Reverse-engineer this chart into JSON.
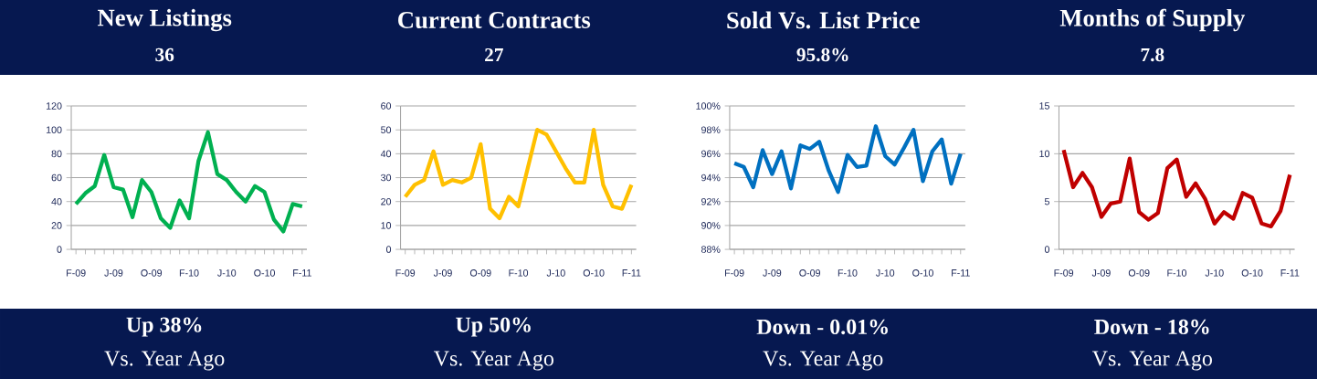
{
  "chart_data": [
    {
      "type": "line",
      "title": "New Listings",
      "subtitle": "36",
      "color": "#00b050",
      "grid": "y",
      "categories": [
        "F-09",
        null,
        null,
        null,
        "J-09",
        null,
        null,
        null,
        "O-09",
        null,
        null,
        null,
        "F-10",
        null,
        null,
        null,
        "J-10",
        null,
        null,
        null,
        "O-10",
        null,
        null,
        null,
        "F-11"
      ],
      "values": [
        38,
        47,
        53,
        79,
        52,
        50,
        27,
        58,
        48,
        26,
        18,
        41,
        26,
        74,
        98,
        63,
        58,
        48,
        40,
        53,
        48,
        25,
        15,
        38,
        36
      ],
      "ylim": [
        0,
        120
      ],
      "yticks": [
        0,
        20,
        40,
        60,
        80,
        100,
        120
      ],
      "annotations": [
        "**Up  38%**",
        "Vs. Year Ago"
      ]
    },
    {
      "type": "line",
      "title": "Current Contracts",
      "subtitle": "27",
      "color": "#ffc000",
      "grid": "y",
      "categories": [
        "F-09",
        null,
        null,
        null,
        "J-09",
        null,
        null,
        null,
        "O-09",
        null,
        null,
        null,
        "F-10",
        null,
        null,
        null,
        "J-10",
        null,
        null,
        null,
        "O-10",
        null,
        null,
        null,
        "F-11"
      ],
      "values": [
        22,
        27,
        29,
        41,
        27,
        29,
        28,
        30,
        44,
        17,
        13,
        22,
        18,
        34,
        50,
        48,
        41,
        34,
        28,
        28,
        50,
        27,
        18,
        17,
        27
      ],
      "ylim": [
        0,
        60
      ],
      "yticks": [
        0,
        10,
        20,
        30,
        40,
        50,
        60
      ],
      "annotations": [
        "**Up  50%**",
        "Vs. Year Ago"
      ]
    },
    {
      "type": "line",
      "title": "Sold Vs. List Price",
      "subtitle": "95.8%",
      "color": "#0070c0",
      "grid": "y",
      "categories": [
        "F-09",
        null,
        null,
        null,
        "J-09",
        null,
        null,
        null,
        "O-09",
        null,
        null,
        null,
        "F-10",
        null,
        null,
        null,
        "J-10",
        null,
        null,
        null,
        "O-10",
        null,
        null,
        null,
        "F-11"
      ],
      "values": [
        95.2,
        94.9,
        93.2,
        96.3,
        94.3,
        96.2,
        93.1,
        96.7,
        96.4,
        97.0,
        94.6,
        92.8,
        95.9,
        94.9,
        95.0,
        98.3,
        95.8,
        95.1,
        96.5,
        98.0,
        93.7,
        96.2,
        97.2,
        93.5,
        96.0
      ],
      "ylim": [
        88,
        100
      ],
      "yticks": [
        {
          "value": 88,
          "label": "88%"
        },
        {
          "value": 90,
          "label": "90%"
        },
        {
          "value": 92,
          "label": "92%"
        },
        {
          "value": 94,
          "label": "94%"
        },
        {
          "value": 96,
          "label": "96%"
        },
        {
          "value": 98,
          "label": "98%"
        },
        {
          "value": 100,
          "label": "100%"
        }
      ],
      "annotations": [
        "**Down  - 0.01%**",
        "Vs. Year Ago"
      ]
    },
    {
      "type": "line",
      "title": "Months of Supply",
      "subtitle": "7.8",
      "color": "#c00000",
      "grid": "y",
      "categories": [
        "F-09",
        null,
        null,
        null,
        "J-09",
        null,
        null,
        null,
        "O-09",
        null,
        null,
        null,
        "F-10",
        null,
        null,
        null,
        "J-10",
        null,
        null,
        null,
        "O-10",
        null,
        null,
        null,
        "F-11"
      ],
      "values": [
        10.4,
        6.5,
        8.0,
        6.5,
        3.4,
        4.8,
        5.0,
        9.5,
        3.9,
        3.1,
        3.8,
        8.5,
        9.4,
        5.5,
        6.9,
        5.3,
        2.7,
        3.9,
        3.2,
        5.9,
        5.4,
        2.7,
        2.4,
        4.0,
        7.8
      ],
      "ylim": [
        0,
        15
      ],
      "yticks": [
        0,
        5,
        10,
        15
      ],
      "annotations": [
        "**Down  - 18%**",
        "Vs. Year Ago"
      ]
    }
  ]
}
